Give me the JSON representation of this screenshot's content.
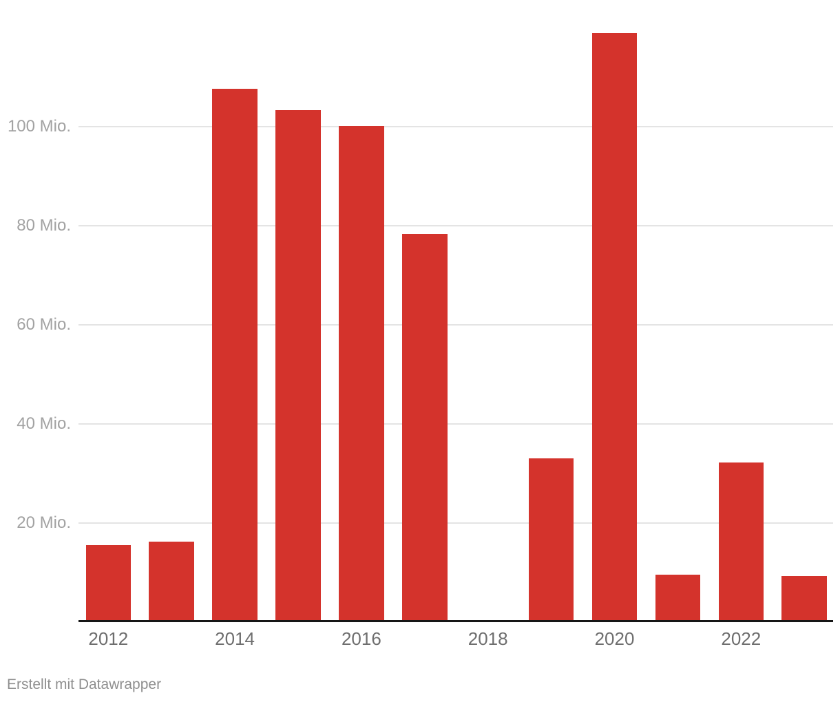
{
  "chart_data": {
    "type": "bar",
    "title": "",
    "xlabel": "",
    "ylabel": "",
    "unit": "Mio.",
    "categories": [
      "2012",
      "2013",
      "2014",
      "2015",
      "2016",
      "2017",
      "2018",
      "2019",
      "2020",
      "2021",
      "2022",
      "2023"
    ],
    "values": [
      15.5,
      16.2,
      107.6,
      103.3,
      100.2,
      78.4,
      0,
      33.0,
      118.9,
      9.6,
      32.2,
      9.3
    ],
    "ylim": [
      0,
      125.5
    ],
    "grid": "horizontal",
    "legend": "none",
    "y_ticks": [
      {
        "value": 20,
        "label": "20 Mio."
      },
      {
        "value": 40,
        "label": "40 Mio."
      },
      {
        "value": 60,
        "label": "60 Mio."
      },
      {
        "value": 80,
        "label": "80 Mio."
      },
      {
        "value": 100,
        "label": "100 Mio."
      }
    ],
    "x_ticks": [
      "2012",
      "2014",
      "2016",
      "2018",
      "2020",
      "2022"
    ]
  },
  "colors": {
    "bar": "#d4332c",
    "gridline": "#e4e4e4",
    "axis_line": "#161616",
    "y_tick_label": "#a2a2a2",
    "x_tick_label": "#6e6e6e",
    "footer_text": "#8f8f8f",
    "background": "#ffffff"
  },
  "footer": {
    "attribution": "Erstellt mit Datawrapper"
  }
}
